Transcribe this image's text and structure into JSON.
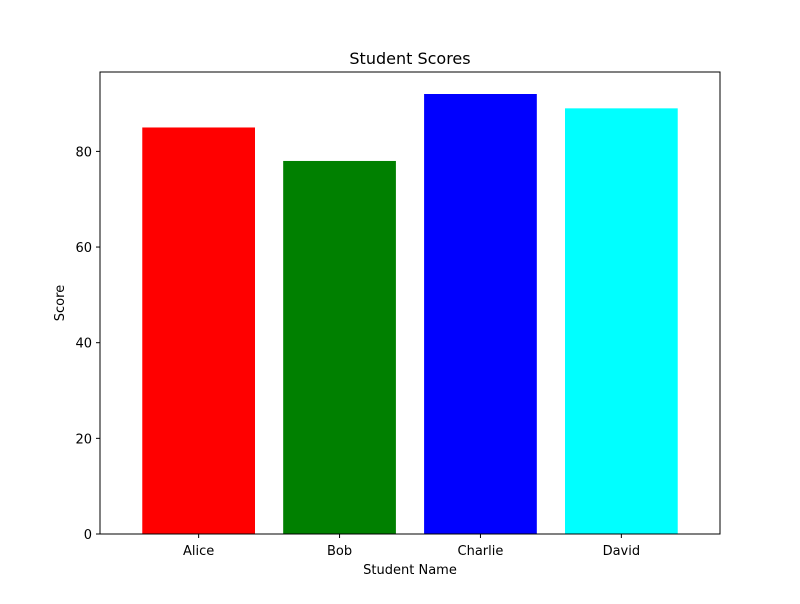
{
  "chart_data": {
    "type": "bar",
    "title": "Student Scores",
    "xlabel": "Student Name",
    "ylabel": "Score",
    "categories": [
      "Alice",
      "Bob",
      "Charlie",
      "David"
    ],
    "values": [
      85,
      78,
      92,
      89
    ],
    "colors": [
      "#ff0000",
      "#008000",
      "#0000ff",
      "#00ffff"
    ],
    "ylim": [
      0,
      96.6
    ],
    "yticks": [
      0,
      20,
      40,
      60,
      80
    ],
    "grid": false,
    "legend": "none"
  }
}
